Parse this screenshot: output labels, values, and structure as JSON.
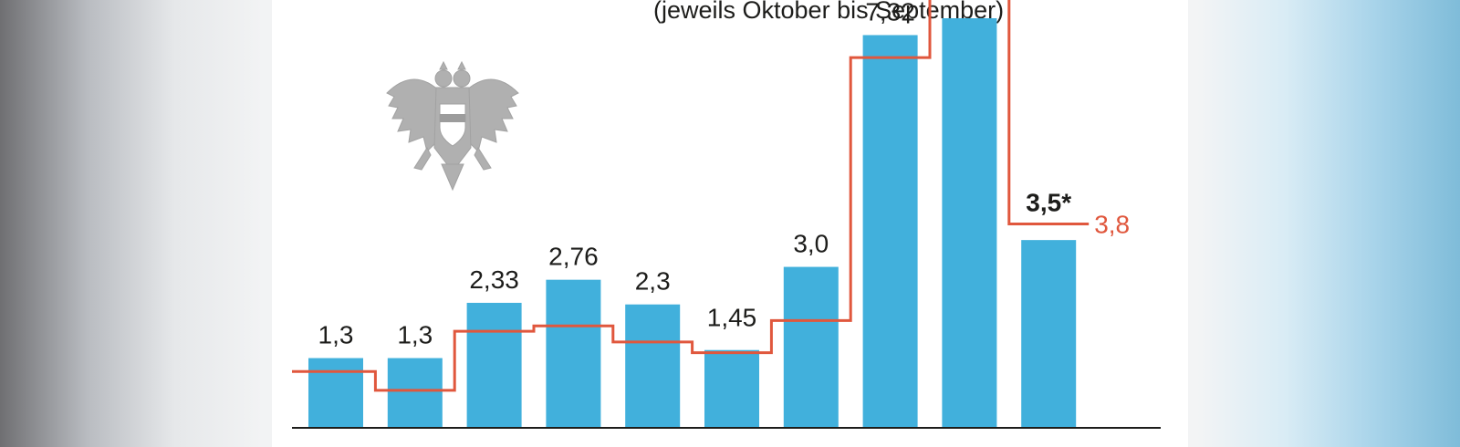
{
  "subtitle": "(jeweils Oktober bis September)",
  "colors": {
    "bar": "#41b0dc",
    "line": "#e0573d",
    "axis": "#1d1d1b",
    "text": "#1d1d1b"
  },
  "icon": "austrian-eagle-coat-of-arms",
  "chart_data": {
    "type": "bar",
    "title": "(jeweils Oktober bis September)",
    "xlabel": "",
    "ylabel": "",
    "ylim": [
      0,
      7.6
    ],
    "grid": false,
    "bar_values": [
      1.3,
      1.3,
      2.33,
      2.76,
      2.3,
      1.45,
      3.0,
      7.32,
      8.1,
      3.5
    ],
    "bar_labels": [
      "1,3",
      "1,3",
      "2,33",
      "2,76",
      "2,3",
      "1,45",
      "3,0",
      "7,32",
      "",
      "3,5*"
    ],
    "line_values": [
      1.05,
      0.7,
      1.8,
      1.9,
      1.6,
      1.4,
      2.0,
      6.9,
      8.0,
      3.8
    ],
    "line_end_label": "3,8"
  }
}
